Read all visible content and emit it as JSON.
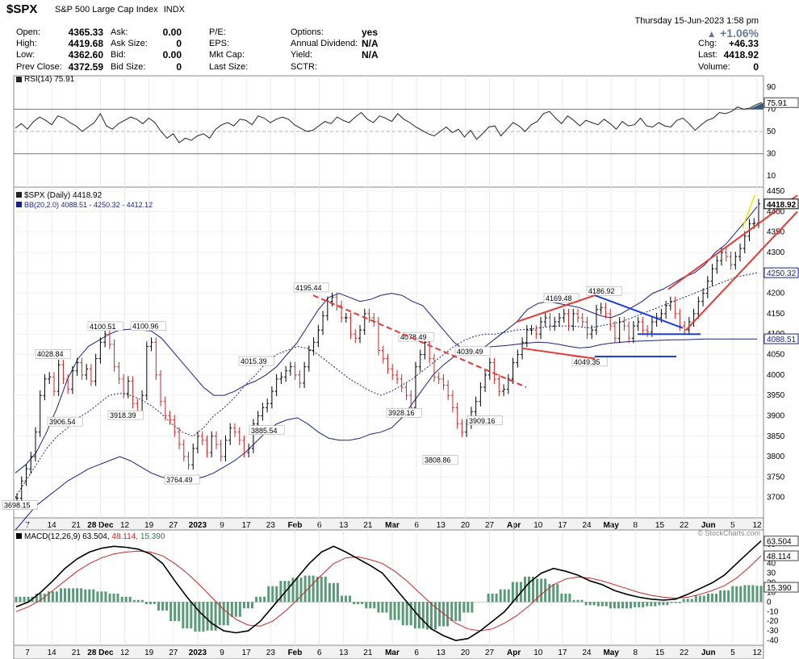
{
  "header": {
    "ticker": "$SPX",
    "name": "S&P 500 Large Cap Index",
    "exchange": "INDX",
    "datetime": "Thursday  15-Jun-2023  1:58 pm",
    "change_pct": "+1.06%",
    "change_arrow": "▲",
    "watermark": "© StockCharts.com",
    "left_fields": [
      {
        "label": "Open:",
        "value": "4365.33"
      },
      {
        "label": "High:",
        "value": "4419.68"
      },
      {
        "label": "Low:",
        "value": "4362.60"
      },
      {
        "label": "Prev Close:",
        "value": "4372.59"
      }
    ],
    "mid_fields": [
      {
        "label": "Ask:",
        "value": "0.00"
      },
      {
        "label": "Ask Size:",
        "value": "0"
      },
      {
        "label": "Bid:",
        "value": "0.00"
      },
      {
        "label": "Bid Size:",
        "value": "0"
      }
    ],
    "mid2_fields": [
      {
        "label": "P/E:",
        "value": ""
      },
      {
        "label": "EPS:",
        "value": ""
      },
      {
        "label": "Mkt Cap:",
        "value": ""
      },
      {
        "label": "Last Size:",
        "value": ""
      }
    ],
    "right_fields": [
      {
        "label": "Options:",
        "value": "yes"
      },
      {
        "label": "Annual Dividend:",
        "value": "N/A"
      },
      {
        "label": "Yield:",
        "value": "N/A"
      },
      {
        "label": "SCTR:",
        "value": ""
      }
    ],
    "far_fields": [
      {
        "label": "Chg:",
        "value": "+46.33"
      },
      {
        "label": "Last:",
        "value": "4418.92"
      },
      {
        "label": "Volume:",
        "value": "0"
      }
    ]
  },
  "chart_data": [
    {
      "type": "line",
      "panel": "RSI",
      "title": "RSI(14) 75.91",
      "current_value": 75.91,
      "current_label": "75.91",
      "ylim": [
        0,
        100
      ],
      "yticks": [
        10,
        30,
        50,
        70,
        90
      ],
      "reference_lines": [
        30,
        50,
        70
      ],
      "series": [
        {
          "values": [
            53,
            57,
            52,
            59,
            63,
            60,
            56,
            64,
            62,
            58,
            55,
            50,
            54,
            58,
            66,
            55,
            52,
            57,
            60,
            63,
            61,
            57,
            62,
            58,
            50,
            44,
            48,
            40,
            44,
            42,
            46,
            48,
            44,
            52,
            56,
            58,
            55,
            61,
            60,
            56,
            64,
            62,
            58,
            61,
            63,
            61,
            56,
            53,
            50,
            51,
            55,
            59,
            57,
            63,
            60,
            58,
            63,
            67,
            61,
            58,
            64,
            62,
            59,
            66,
            61,
            58,
            54,
            51,
            48,
            46,
            50,
            54,
            49,
            52,
            45,
            51,
            43,
            48,
            54,
            55,
            46,
            52,
            58,
            55,
            50,
            56,
            59,
            66,
            68,
            62,
            57,
            64,
            60,
            55,
            60,
            58,
            56,
            61,
            57,
            52,
            59,
            55,
            56,
            62,
            55,
            54,
            58,
            55,
            54,
            60,
            62,
            57,
            51,
            56,
            60,
            62,
            67,
            66,
            68,
            72,
            70,
            71,
            74,
            75.91
          ]
        }
      ]
    },
    {
      "type": "candlestick",
      "panel": "price",
      "title": "$SPX (Daily) 4418.92",
      "bb_label": "BB(20,2.0) 4088.51 - 4250.32 - 4412.12",
      "ylim": [
        3650,
        4460
      ],
      "yticks": [
        3700,
        3750,
        3800,
        3850,
        3900,
        3950,
        4000,
        4050,
        4100,
        4150,
        4200,
        4250,
        4300,
        4350,
        4400,
        4450
      ],
      "right_labels": [
        {
          "text": "4418.92",
          "value": 4418.92,
          "color": "#000000"
        },
        {
          "text": "4250.32",
          "value": 4250.32,
          "color": "#1a237e"
        },
        {
          "text": "4088.51",
          "value": 4088.51,
          "color": "#1a237e"
        }
      ],
      "x_labels": [
        "7",
        "14",
        "21",
        "28 Dec",
        "12",
        "19",
        "27",
        "2023",
        "9",
        "17",
        "23",
        "Feb",
        "6",
        "13",
        "21",
        "Mar",
        "6",
        "13",
        "20",
        "27",
        "Apr",
        "10",
        "17",
        "24",
        "May",
        "8",
        "15",
        "22",
        "Jun",
        "5",
        "12"
      ],
      "annotations": [
        {
          "text": "3698.15",
          "value": 3698.15
        },
        {
          "text": "4028.84",
          "value": 4028.84
        },
        {
          "text": "3906.54",
          "value": 3906.54
        },
        {
          "text": "4100.51",
          "value": 4100.51
        },
        {
          "text": "4100.96",
          "value": 4100.96
        },
        {
          "text": "3918.39",
          "value": 3918.39
        },
        {
          "text": "3764.49",
          "value": 3764.49
        },
        {
          "text": "4015.39",
          "value": 4015.39
        },
        {
          "text": "3885.54",
          "value": 3885.54
        },
        {
          "text": "4195.44",
          "value": 4195.44
        },
        {
          "text": "4078.49",
          "value": 4078.49
        },
        {
          "text": "3928.16",
          "value": 3928.16
        },
        {
          "text": "3808.86",
          "value": 3808.86
        },
        {
          "text": "4039.49",
          "value": 4039.49
        },
        {
          "text": "3909.16",
          "value": 3909.16
        },
        {
          "text": "4169.48",
          "value": 4169.48
        },
        {
          "text": "4186.92",
          "value": 4186.92
        },
        {
          "text": "4049.35",
          "value": 4049.35
        }
      ],
      "closes": [
        3698,
        3740,
        3770,
        3800,
        3860,
        3950,
        3990,
        3995,
        3960,
        4025,
        3990,
        3965,
        4010,
        4030,
        4000,
        4015,
        3985,
        4040,
        4080,
        4100,
        4075,
        4020,
        3990,
        3955,
        3985,
        3930,
        3910,
        3950,
        4070,
        4080,
        4000,
        3935,
        3900,
        3890,
        3860,
        3830,
        3800,
        3780,
        3820,
        3850,
        3840,
        3810,
        3850,
        3830,
        3800,
        3840,
        3870,
        3860,
        3840,
        3810,
        3820,
        3880,
        3900,
        3920,
        3930,
        3960,
        3990,
        3995,
        4010,
        4020,
        4000,
        3980,
        4020,
        4060,
        4080,
        4110,
        4145,
        4180,
        4190,
        4170,
        4140,
        4140,
        4100,
        4090,
        4110,
        4150,
        4140,
        4130,
        4060,
        4040,
        4015,
        4000,
        3990,
        3970,
        3950,
        3920,
        4020,
        4050,
        4080,
        4040,
        3995,
        3990,
        3975,
        3950,
        3920,
        3880,
        3860,
        3880,
        3910,
        3935,
        3970,
        4000,
        4030,
        3990,
        3960,
        3965,
        3990,
        4030,
        4050,
        4080,
        4110,
        4110,
        4100,
        4130,
        4140,
        4120,
        4130,
        4140,
        4150,
        4120,
        4150,
        4140,
        4130,
        4100,
        4110,
        4160,
        4165,
        4150,
        4120,
        4090,
        4130,
        4120,
        4090,
        4120,
        4130,
        4110,
        4105,
        4130,
        4140,
        4150,
        4170,
        4180,
        4150,
        4120,
        4110,
        4130,
        4150,
        4180,
        4200,
        4230,
        4260,
        4280,
        4300,
        4290,
        4270,
        4290,
        4310,
        4340,
        4370,
        4372,
        4419
      ],
      "series": [
        {
          "name": "BB upper",
          "values": [
            3760,
            3780,
            3810,
            3860,
            3920,
            3990,
            4040,
            4070,
            4085,
            4100,
            4110,
            4112,
            4110,
            4108,
            4090,
            4060,
            4030,
            4000,
            3970,
            3950,
            3950,
            3960,
            3975,
            3985,
            4000,
            4020,
            4050,
            4080,
            4120,
            4160,
            4190,
            4200,
            4190,
            4180,
            4185,
            4195,
            4200,
            4195,
            4180,
            4170,
            4140,
            4110,
            4080,
            4060,
            4050,
            4070,
            4090,
            4110,
            4130,
            4160,
            4175,
            4180,
            4175,
            4170,
            4165,
            4155,
            4145,
            4140,
            4150,
            4165,
            4180,
            4200,
            4210,
            4225,
            4240,
            4250,
            4270,
            4300,
            4320,
            4350,
            4380,
            4412
          ]
        },
        {
          "name": "BB middle",
          "values": [
            3700,
            3740,
            3780,
            3820,
            3850,
            3870,
            3895,
            3910,
            3930,
            3950,
            3955,
            3950,
            3940,
            3925,
            3905,
            3880,
            3860,
            3850,
            3870,
            3900,
            3920,
            3945,
            3975,
            4000,
            4030,
            4050,
            4060,
            4070,
            4065,
            4050,
            4030,
            4010,
            3990,
            3975,
            3960,
            3950,
            3960,
            3975,
            3990,
            4010,
            4030,
            4050,
            4070,
            4085,
            4095,
            4100,
            4100,
            4105,
            4110,
            4112,
            4115,
            4118,
            4120,
            4120,
            4118,
            4115,
            4120,
            4125,
            4130,
            4140,
            4150,
            4160,
            4170,
            4180,
            4190,
            4200,
            4210,
            4220,
            4230,
            4240,
            4245,
            4250
          ]
        },
        {
          "name": "BB lower",
          "values": [
            3620,
            3650,
            3680,
            3700,
            3720,
            3740,
            3755,
            3770,
            3780,
            3790,
            3800,
            3790,
            3775,
            3760,
            3750,
            3745,
            3740,
            3745,
            3750,
            3760,
            3775,
            3790,
            3810,
            3835,
            3860,
            3880,
            3890,
            3895,
            3880,
            3860,
            3845,
            3840,
            3840,
            3845,
            3855,
            3860,
            3870,
            3895,
            3930,
            3965,
            4000,
            4025,
            4045,
            4060,
            4065,
            4068,
            4070,
            4072,
            4075,
            4078,
            4080,
            4079,
            4075,
            4070,
            4066,
            4068,
            4074,
            4078,
            4080,
            4082,
            4083,
            4084,
            4085,
            4086,
            4086,
            4087,
            4088,
            4088,
            4088,
            4088,
            4088,
            4088
          ]
        }
      ]
    },
    {
      "type": "line",
      "panel": "MACD",
      "title": "MACD(12,26,9) 63.504, 48.114, 15.390",
      "label_parts": {
        "name": "MACD(12,26,9)",
        "macd": "63.504",
        "signal": "48.114",
        "hist": "15.390"
      },
      "ylim": [
        -45,
        75
      ],
      "yticks": [
        -40,
        -30,
        -20,
        -10,
        0,
        10,
        20,
        30,
        40,
        50,
        60
      ],
      "right_labels": [
        {
          "text": "63.504",
          "value": 63.504
        },
        {
          "text": "48.114",
          "value": 48.114
        },
        {
          "text": "15.390",
          "value": 15.39
        }
      ],
      "series": [
        {
          "name": "MACD",
          "values": [
            -5,
            0,
            10,
            22,
            35,
            45,
            52,
            56,
            58,
            57,
            55,
            50,
            40,
            22,
            5,
            -10,
            -22,
            -30,
            -32,
            -30,
            -20,
            -5,
            10,
            25,
            40,
            52,
            58,
            52,
            45,
            38,
            30,
            15,
            0,
            -15,
            -28,
            -35,
            -40,
            -38,
            -30,
            -20,
            -10,
            5,
            20,
            30,
            35,
            32,
            28,
            22,
            18,
            12,
            8,
            5,
            3,
            2,
            3,
            8,
            14,
            20,
            28,
            40,
            52,
            63.504
          ]
        },
        {
          "name": "Signal",
          "values": [
            -10,
            -5,
            2,
            12,
            22,
            32,
            40,
            46,
            50,
            52,
            53,
            52,
            48,
            40,
            30,
            18,
            5,
            -8,
            -18,
            -24,
            -25,
            -20,
            -10,
            2,
            15,
            28,
            40,
            46,
            47,
            44,
            40,
            32,
            22,
            10,
            -2,
            -12,
            -22,
            -28,
            -30,
            -28,
            -22,
            -14,
            -4,
            8,
            18,
            24,
            26,
            25,
            22,
            18,
            14,
            10,
            7,
            5,
            4,
            5,
            8,
            12,
            17,
            25,
            36,
            48.114
          ]
        }
      ],
      "x_labels": [
        "7",
        "14",
        "21",
        "28 Dec",
        "12",
        "19",
        "27",
        "2023",
        "9",
        "17",
        "23",
        "Feb",
        "6",
        "13",
        "21",
        "Mar",
        "6",
        "13",
        "20",
        "27",
        "Apr",
        "10",
        "17",
        "24",
        "May",
        "8",
        "15",
        "22",
        "Jun",
        "5",
        "12"
      ]
    }
  ]
}
